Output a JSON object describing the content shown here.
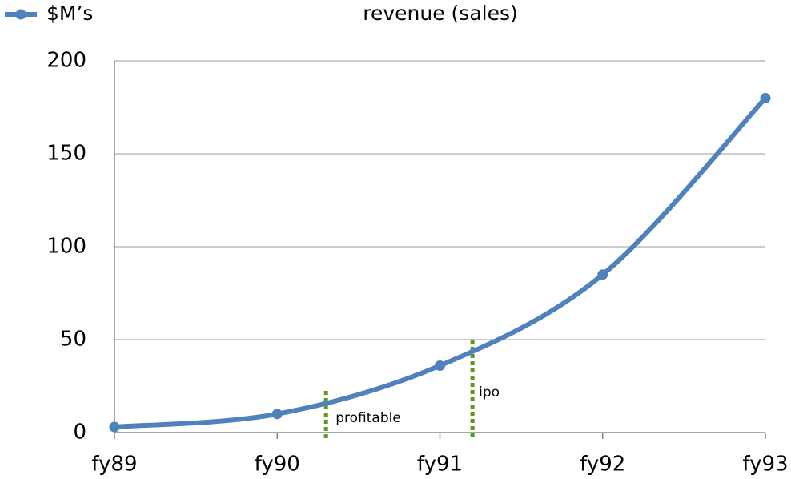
{
  "chart_data": {
    "type": "line",
    "title": "revenue (sales)",
    "categories": [
      "fy89",
      "fy90",
      "fy91",
      "fy92",
      "fy93"
    ],
    "series": [
      {
        "name": "$M’s",
        "color": "#4f81bd",
        "values": [
          3,
          10,
          36,
          85,
          180
        ]
      }
    ],
    "ylim": [
      0,
      200
    ],
    "yticks": [
      0,
      50,
      100,
      150,
      200
    ],
    "grid": true,
    "smooth": true,
    "legend": "top-left",
    "annotations": [
      {
        "text": "profitable",
        "color": "#5b9a1a"
      },
      {
        "text": "ipo",
        "color": "#5b9a1a"
      }
    ]
  }
}
